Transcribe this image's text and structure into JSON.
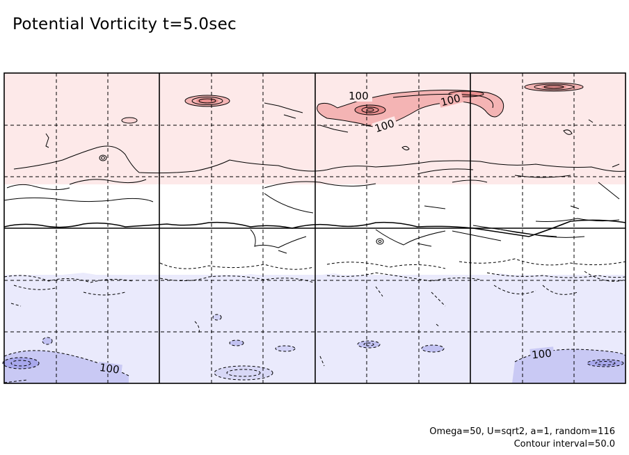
{
  "chart_data": {
    "type": "contour",
    "title": "Potential Vorticity t=5.0sec",
    "params_note": "Omega=50, U=sqrt2, a=1, random=116",
    "interval_note": "Contour interval=50.0",
    "contour_interval": 50.0,
    "contour_labels": [
      "100",
      "100",
      "100",
      "100",
      "100"
    ],
    "grid": "dashed",
    "shading": {
      "positive_color": "#fde9e9",
      "positive_strong_color": "#f4b4b4",
      "negative_color": "#eaeafc",
      "negative_strong_color": "#b8b8f0"
    }
  }
}
